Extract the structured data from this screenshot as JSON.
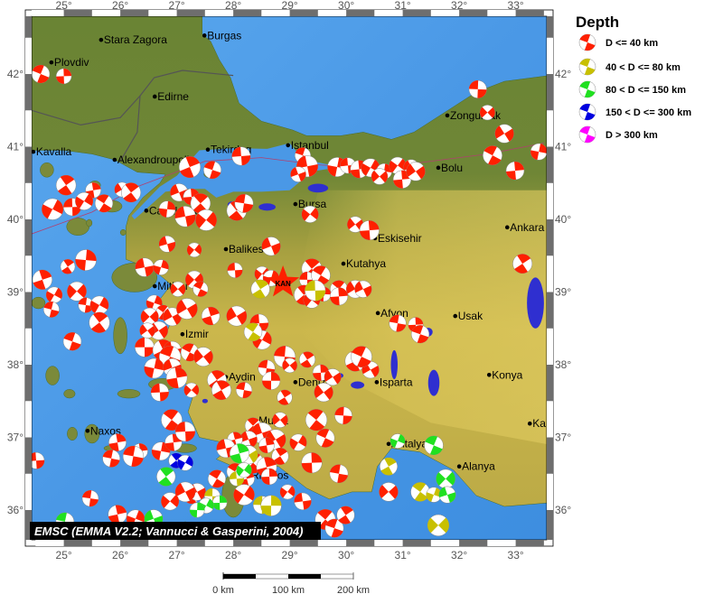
{
  "legend": {
    "title": "Depth",
    "items": [
      {
        "label": "D <= 40 km",
        "color": "#ff2000"
      },
      {
        "label": "40 < D <= 80 km",
        "color": "#c8c000"
      },
      {
        "label": "80 < D <= 150 km",
        "color": "#20e020"
      },
      {
        "label": "150 < D <= 300 km",
        "color": "#0000e0"
      },
      {
        "label": "D > 300 km",
        "color": "#ff00ff"
      }
    ]
  },
  "attribution": "EMSC (EMMA V2.2; Vannucci & Gasperini, 2004)",
  "axes": {
    "lon_ticks": [
      "25°",
      "26°",
      "27°",
      "28°",
      "29°",
      "30°",
      "31°",
      "32°",
      "33°"
    ],
    "lon_values": [
      25,
      26,
      27,
      28,
      29,
      30,
      31,
      32,
      33
    ],
    "lat_ticks": [
      "42°",
      "41°",
      "40°",
      "39°",
      "38°",
      "37°",
      "36°"
    ],
    "lat_values": [
      42,
      41,
      40,
      39,
      38,
      37,
      36
    ],
    "lon_range": [
      24.43,
      33.55
    ],
    "lat_range": [
      35.55,
      42.8
    ]
  },
  "scale_bar": {
    "labels": [
      "0 km",
      "100 km",
      "200 km"
    ]
  },
  "colors": {
    "sea": "#4a98e6",
    "land_low": "#5f7d30",
    "land_high": "#cbb74c",
    "lake": "#2f2fd0",
    "star": "#ff2000"
  },
  "epicenter": {
    "label": "KAN",
    "lon": 28.88,
    "lat": 39.13
  },
  "cities": [
    {
      "name": "Stara Zagora",
      "lon": 25.66,
      "lat": 42.47
    },
    {
      "name": "Burgas",
      "lon": 27.49,
      "lat": 42.53
    },
    {
      "name": "Plovdiv",
      "lon": 24.78,
      "lat": 42.16
    },
    {
      "name": "Edirne",
      "lon": 26.61,
      "lat": 41.69
    },
    {
      "name": "Kavalla",
      "lon": 24.46,
      "lat": 40.93
    },
    {
      "name": "Alexandroupolis",
      "lon": 25.9,
      "lat": 40.82
    },
    {
      "name": "Tekirdag",
      "lon": 27.55,
      "lat": 40.96
    },
    {
      "name": "Istanbul",
      "lon": 28.97,
      "lat": 41.02
    },
    {
      "name": "Zonguldak",
      "lon": 31.79,
      "lat": 41.43
    },
    {
      "name": "Bolu",
      "lon": 31.63,
      "lat": 40.71
    },
    {
      "name": "Bursa",
      "lon": 29.1,
      "lat": 40.21
    },
    {
      "name": "Canakkale",
      "lon": 26.46,
      "lat": 40.12
    },
    {
      "name": "Balikesir",
      "lon": 27.87,
      "lat": 39.59
    },
    {
      "name": "Eskisehir",
      "lon": 30.51,
      "lat": 39.74
    },
    {
      "name": "Ankara",
      "lon": 32.85,
      "lat": 39.89
    },
    {
      "name": "Kutahya",
      "lon": 29.95,
      "lat": 39.39
    },
    {
      "name": "Mitilini",
      "lon": 26.61,
      "lat": 39.08
    },
    {
      "name": "Izmir",
      "lon": 27.1,
      "lat": 38.42
    },
    {
      "name": "Afyon",
      "lon": 30.56,
      "lat": 38.71
    },
    {
      "name": "Usak",
      "lon": 31.93,
      "lat": 38.67
    },
    {
      "name": "Aydin",
      "lon": 27.87,
      "lat": 37.83
    },
    {
      "name": "Denizli",
      "lon": 29.1,
      "lat": 37.76
    },
    {
      "name": "Isparta",
      "lon": 30.54,
      "lat": 37.76
    },
    {
      "name": "Konya",
      "lon": 32.53,
      "lat": 37.86
    },
    {
      "name": "Naxos",
      "lon": 25.42,
      "lat": 37.09
    },
    {
      "name": "Mugla",
      "lon": 28.4,
      "lat": 37.23
    },
    {
      "name": "Rhodos",
      "lon": 28.27,
      "lat": 36.48
    },
    {
      "name": "Antalya",
      "lon": 30.75,
      "lat": 36.91
    },
    {
      "name": "Alanya",
      "lon": 32.0,
      "lat": 36.6
    },
    {
      "name": "Ka",
      "lon": 33.25,
      "lat": 37.19
    }
  ],
  "events": [
    [
      24.59,
      42.0,
      0
    ],
    [
      25.0,
      41.97,
      0
    ],
    [
      32.33,
      41.79,
      0
    ],
    [
      32.5,
      41.47,
      0
    ],
    [
      32.8,
      41.18,
      0
    ],
    [
      33.41,
      40.93,
      0
    ],
    [
      32.59,
      40.88,
      0
    ],
    [
      32.99,
      40.67,
      0
    ],
    [
      33.12,
      39.39,
      0
    ],
    [
      28.14,
      40.87,
      0
    ],
    [
      29.23,
      40.88,
      0
    ],
    [
      29.31,
      40.73,
      0
    ],
    [
      29.15,
      40.62,
      0
    ],
    [
      27.23,
      40.72,
      0
    ],
    [
      27.63,
      40.68,
      0
    ],
    [
      29.84,
      40.72,
      0
    ],
    [
      30.03,
      40.74,
      0
    ],
    [
      30.23,
      40.69,
      0
    ],
    [
      30.43,
      40.71,
      0
    ],
    [
      30.67,
      40.66,
      0
    ],
    [
      30.91,
      40.74,
      0
    ],
    [
      31.15,
      40.72,
      0
    ],
    [
      30.59,
      40.59,
      0
    ],
    [
      30.99,
      40.55,
      0
    ],
    [
      31.23,
      40.66,
      0
    ],
    [
      25.04,
      40.47,
      0
    ],
    [
      25.52,
      40.4,
      0
    ],
    [
      25.71,
      40.22,
      0
    ],
    [
      26.03,
      40.41,
      0
    ],
    [
      26.19,
      40.37,
      0
    ],
    [
      24.8,
      40.14,
      0
    ],
    [
      25.15,
      40.17,
      0
    ],
    [
      25.36,
      40.25,
      0
    ],
    [
      27.04,
      40.37,
      0
    ],
    [
      27.26,
      40.31,
      0
    ],
    [
      27.42,
      40.22,
      0
    ],
    [
      26.83,
      40.14,
      0
    ],
    [
      27.15,
      40.04,
      0
    ],
    [
      27.52,
      39.99,
      0
    ],
    [
      28.06,
      40.12,
      0
    ],
    [
      28.19,
      40.22,
      0
    ],
    [
      29.36,
      40.07,
      0
    ],
    [
      30.16,
      39.93,
      0
    ],
    [
      30.41,
      39.85,
      0
    ],
    [
      26.83,
      39.66,
      0
    ],
    [
      27.31,
      39.58,
      0
    ],
    [
      28.67,
      39.63,
      0
    ],
    [
      28.03,
      39.3,
      0
    ],
    [
      27.31,
      39.17,
      0
    ],
    [
      26.43,
      39.34,
      0
    ],
    [
      26.72,
      39.34,
      0
    ],
    [
      25.39,
      39.44,
      0
    ],
    [
      25.07,
      39.35,
      0
    ],
    [
      24.62,
      39.17,
      0
    ],
    [
      25.23,
      39.01,
      0
    ],
    [
      24.83,
      38.96,
      0
    ],
    [
      24.78,
      38.76,
      0
    ],
    [
      25.39,
      38.82,
      0
    ],
    [
      25.63,
      38.82,
      0
    ],
    [
      25.63,
      38.58,
      0
    ],
    [
      25.15,
      38.32,
      0
    ],
    [
      24.51,
      36.68,
      0
    ],
    [
      28.51,
      39.25,
      0
    ],
    [
      28.67,
      39.19,
      0
    ],
    [
      29.39,
      39.32,
      0
    ],
    [
      29.31,
      39.17,
      0
    ],
    [
      29.55,
      39.23,
      0
    ],
    [
      29.87,
      39.04,
      0
    ],
    [
      30.16,
      39.04,
      0
    ],
    [
      29.6,
      38.97,
      0
    ],
    [
      29.87,
      38.94,
      0
    ],
    [
      30.3,
      39.04,
      0
    ],
    [
      29.25,
      38.96,
      0
    ],
    [
      29.39,
      38.89,
      0
    ],
    [
      27.02,
      39.04,
      0
    ],
    [
      27.42,
      39.04,
      0
    ],
    [
      26.6,
      38.85,
      0
    ],
    [
      26.76,
      38.72,
      0
    ],
    [
      26.52,
      38.66,
      0
    ],
    [
      26.68,
      38.47,
      0
    ],
    [
      26.92,
      38.66,
      0
    ],
    [
      26.48,
      38.47,
      0
    ],
    [
      26.43,
      38.24,
      0
    ],
    [
      26.76,
      38.2,
      0
    ],
    [
      26.92,
      38.2,
      0
    ],
    [
      27.18,
      38.77,
      0
    ],
    [
      27.6,
      38.67,
      0
    ],
    [
      28.06,
      38.67,
      0
    ],
    [
      28.46,
      38.57,
      0
    ],
    [
      28.51,
      38.34,
      0
    ],
    [
      27.23,
      38.17,
      0
    ],
    [
      26.88,
      38.11,
      0
    ],
    [
      27.47,
      38.11,
      0
    ],
    [
      26.6,
      37.95,
      0
    ],
    [
      26.92,
      37.96,
      0
    ],
    [
      27.0,
      37.82,
      0
    ],
    [
      27.26,
      37.65,
      0
    ],
    [
      26.7,
      37.62,
      0
    ],
    [
      27.71,
      37.79,
      0
    ],
    [
      27.79,
      37.65,
      0
    ],
    [
      28.19,
      37.65,
      0
    ],
    [
      28.59,
      37.95,
      0
    ],
    [
      28.91,
      38.11,
      0
    ],
    [
      29.0,
      37.99,
      0
    ],
    [
      29.31,
      38.07,
      0
    ],
    [
      29.55,
      37.89,
      0
    ],
    [
      29.76,
      37.83,
      0
    ],
    [
      29.6,
      37.62,
      0
    ],
    [
      30.16,
      38.05,
      0
    ],
    [
      30.43,
      37.93,
      0
    ],
    [
      30.27,
      38.11,
      0
    ],
    [
      28.91,
      37.55,
      0
    ],
    [
      28.67,
      37.78,
      0
    ],
    [
      29.95,
      37.3,
      0
    ],
    [
      30.91,
      38.57,
      0
    ],
    [
      31.23,
      38.55,
      0
    ],
    [
      31.31,
      38.42,
      0
    ],
    [
      26.91,
      37.24,
      0
    ],
    [
      25.95,
      36.93,
      0
    ],
    [
      25.84,
      36.71,
      0
    ],
    [
      26.35,
      36.81,
      0
    ],
    [
      26.23,
      36.74,
      0
    ],
    [
      26.72,
      36.81,
      0
    ],
    [
      26.94,
      36.93,
      0
    ],
    [
      27.15,
      37.08,
      0
    ],
    [
      28.35,
      37.16,
      0
    ],
    [
      28.51,
      37.06,
      0
    ],
    [
      28.27,
      36.97,
      0
    ],
    [
      28.75,
      36.97,
      0
    ],
    [
      28.03,
      36.97,
      0
    ],
    [
      28.59,
      36.89,
      0
    ],
    [
      27.87,
      36.85,
      0
    ],
    [
      28.27,
      36.78,
      0
    ],
    [
      28.83,
      36.74,
      0
    ],
    [
      28.35,
      36.65,
      0
    ],
    [
      28.59,
      36.59,
      0
    ],
    [
      28.03,
      36.53,
      0
    ],
    [
      28.24,
      36.43,
      0
    ],
    [
      29.47,
      37.24,
      0
    ],
    [
      29.15,
      36.93,
      0
    ],
    [
      29.63,
      36.99,
      0
    ],
    [
      28.83,
      37.24,
      0
    ],
    [
      29.39,
      36.65,
      0
    ],
    [
      29.87,
      36.5,
      0
    ],
    [
      30.75,
      36.25,
      0
    ],
    [
      27.26,
      36.19,
      0
    ],
    [
      27.36,
      36.25,
      0
    ],
    [
      27.15,
      36.25,
      0
    ],
    [
      26.88,
      36.12,
      0
    ],
    [
      27.71,
      36.43,
      0
    ],
    [
      28.19,
      36.21,
      0
    ],
    [
      28.64,
      36.46,
      0
    ],
    [
      28.96,
      36.25,
      0
    ],
    [
      29.23,
      36.12,
      0
    ],
    [
      29.63,
      35.87,
      0
    ],
    [
      29.79,
      35.75,
      0
    ],
    [
      29.99,
      35.93,
      0
    ],
    [
      26.27,
      35.88,
      0
    ],
    [
      25.47,
      36.16,
      0
    ],
    [
      25.95,
      35.94,
      0
    ],
    [
      28.48,
      39.04,
      1
    ],
    [
      28.35,
      38.45,
      1
    ],
    [
      28.06,
      36.43,
      1
    ],
    [
      28.51,
      36.07,
      1
    ],
    [
      31.31,
      36.25,
      1
    ],
    [
      31.55,
      36.21,
      1
    ],
    [
      30.75,
      36.6,
      1
    ],
    [
      31.63,
      35.79,
      1
    ],
    [
      27.63,
      36.19,
      1
    ],
    [
      29.45,
      39.02,
      1
    ],
    [
      28.67,
      36.06,
      1
    ],
    [
      28.27,
      36.76,
      1
    ],
    [
      30.91,
      36.95,
      2
    ],
    [
      31.55,
      36.89,
      2
    ],
    [
      31.76,
      36.43,
      2
    ],
    [
      31.79,
      36.21,
      2
    ],
    [
      26.81,
      36.46,
      2
    ],
    [
      28.11,
      36.78,
      2
    ],
    [
      27.76,
      36.1,
      2
    ],
    [
      27.52,
      36.06,
      2
    ],
    [
      27.36,
      36.0,
      2
    ],
    [
      25.02,
      35.84,
      2
    ],
    [
      26.59,
      35.88,
      2
    ],
    [
      28.19,
      36.55,
      2
    ],
    [
      26.99,
      36.68,
      3
    ],
    [
      27.15,
      36.65,
      3
    ]
  ]
}
